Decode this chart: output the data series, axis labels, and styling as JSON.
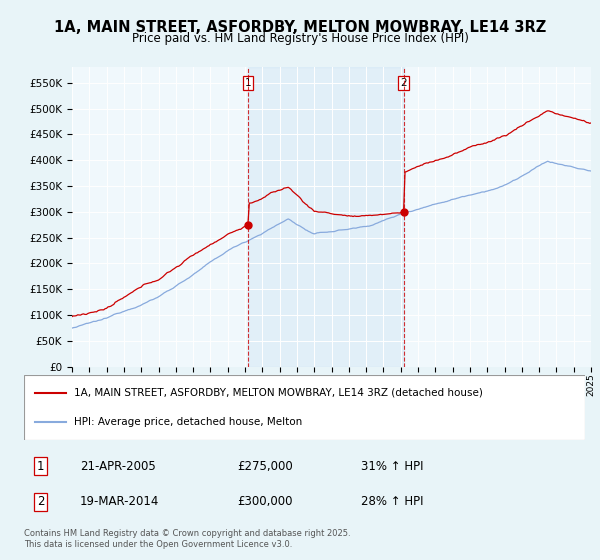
{
  "title": "1A, MAIN STREET, ASFORDBY, MELTON MOWBRAY, LE14 3RZ",
  "subtitle": "Price paid vs. HM Land Registry's House Price Index (HPI)",
  "title_fontsize": 10.5,
  "subtitle_fontsize": 8.5,
  "bg_color": "#e8f4f8",
  "plot_bg_color": "#f0f8fc",
  "shade_color": "#daeaf5",
  "legend_label_red": "1A, MAIN STREET, ASFORDBY, MELTON MOWBRAY, LE14 3RZ (detached house)",
  "legend_label_blue": "HPI: Average price, detached house, Melton",
  "red_color": "#cc0000",
  "blue_color": "#88aadd",
  "marker1_date_idx": 122,
  "marker2_date_idx": 230,
  "marker1_date_str": "21-APR-2005",
  "marker1_price": "£275,000",
  "marker1_hpi": "31% ↑ HPI",
  "marker2_date_str": "19-MAR-2014",
  "marker2_price": "£300,000",
  "marker2_hpi": "28% ↑ HPI",
  "yticks": [
    0,
    50000,
    100000,
    150000,
    200000,
    250000,
    300000,
    350000,
    400000,
    450000,
    500000,
    550000
  ],
  "ylim": [
    0,
    580000
  ],
  "n_months": 361,
  "start_year": 1995,
  "footer": "Contains HM Land Registry data © Crown copyright and database right 2025.\nThis data is licensed under the Open Government Licence v3.0.",
  "copyright_fontsize": 6.0
}
